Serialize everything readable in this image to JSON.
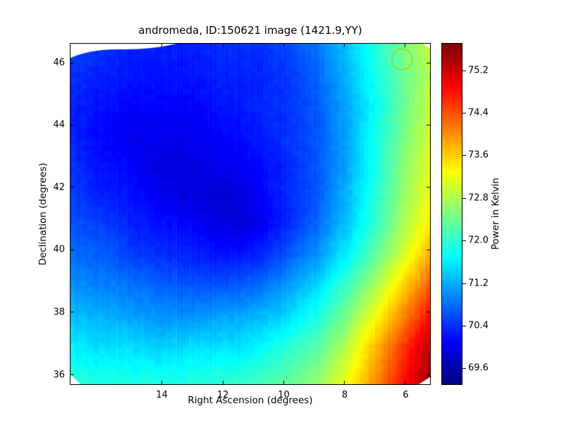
{
  "figure": {
    "background": "#ffffff"
  },
  "chart_data": {
    "type": "heatmap",
    "title": "andromeda, ID:150621 image (1421.9,YY)",
    "xlabel": "Right Ascension (degrees)",
    "ylabel": "Declination (degrees)",
    "x_axis": {
      "min": 17.0,
      "max": 5.2,
      "reversed": true,
      "ticks": [
        14,
        12,
        10,
        8,
        6
      ]
    },
    "y_axis": {
      "min": 35.7,
      "max": 46.6,
      "ticks": [
        36,
        38,
        40,
        42,
        44,
        46
      ]
    },
    "colorbar": {
      "label": "Power in Kelvin",
      "colormap": "jet",
      "vmin": 69.3,
      "vmax": 75.7,
      "ticks": [
        69.6,
        70.4,
        71.2,
        72.0,
        72.8,
        73.6,
        74.4,
        75.2
      ]
    },
    "grid": {
      "ra": [
        17.0,
        16.0,
        15.0,
        14.0,
        13.0,
        12.0,
        11.0,
        10.0,
        9.0,
        8.0,
        7.0,
        6.0,
        5.2
      ],
      "dec": [
        46.6,
        45.6,
        44.6,
        43.6,
        42.7,
        41.7,
        40.8,
        39.8,
        38.9,
        37.9,
        36.9,
        35.7
      ],
      "values_kelvin": [
        [
          70.6,
          70.4,
          70.3,
          70.3,
          70.3,
          70.4,
          70.4,
          70.5,
          70.8,
          71.3,
          71.9,
          72.5,
          72.9
        ],
        [
          70.4,
          70.3,
          70.2,
          70.2,
          70.2,
          70.3,
          70.3,
          70.4,
          70.7,
          71.2,
          71.8,
          72.4,
          72.8
        ],
        [
          70.3,
          70.2,
          70.1,
          70.1,
          70.1,
          70.2,
          70.3,
          70.4,
          70.6,
          71.1,
          71.7,
          72.4,
          72.9
        ],
        [
          70.3,
          70.1,
          70.0,
          70.0,
          70.0,
          70.1,
          70.2,
          70.4,
          70.6,
          71.1,
          71.8,
          72.5,
          73.0
        ],
        [
          70.4,
          70.2,
          70.1,
          69.9,
          69.9,
          70.0,
          70.1,
          70.3,
          70.6,
          71.1,
          71.8,
          72.6,
          73.1
        ],
        [
          70.5,
          70.3,
          70.2,
          70.0,
          69.9,
          69.8,
          70.0,
          70.3,
          70.6,
          71.2,
          71.9,
          72.7,
          73.2
        ],
        [
          70.6,
          70.5,
          70.3,
          70.2,
          70.1,
          69.9,
          69.9,
          70.3,
          70.7,
          71.3,
          72.0,
          72.8,
          73.4
        ],
        [
          70.8,
          70.7,
          70.5,
          70.4,
          70.3,
          70.2,
          70.3,
          70.6,
          71.0,
          71.6,
          72.3,
          73.1,
          73.8
        ],
        [
          71.0,
          70.9,
          70.8,
          70.7,
          70.6,
          70.6,
          70.7,
          71.0,
          71.4,
          72.0,
          72.7,
          73.6,
          74.3
        ],
        [
          71.3,
          71.2,
          71.1,
          71.0,
          71.0,
          71.1,
          71.2,
          71.4,
          71.8,
          72.4,
          73.2,
          74.1,
          74.8
        ],
        [
          71.6,
          71.5,
          71.5,
          71.4,
          71.5,
          71.5,
          71.6,
          71.9,
          72.2,
          72.8,
          73.7,
          74.6,
          75.3
        ],
        [
          72.0,
          71.9,
          71.9,
          71.9,
          71.9,
          72.0,
          72.1,
          72.3,
          72.6,
          73.2,
          74.0,
          74.9,
          75.5
        ]
      ]
    },
    "annotation_circle": {
      "ra": 6.1,
      "dec": 46.1,
      "radius_deg": 0.33,
      "color": "#9acd32"
    }
  }
}
